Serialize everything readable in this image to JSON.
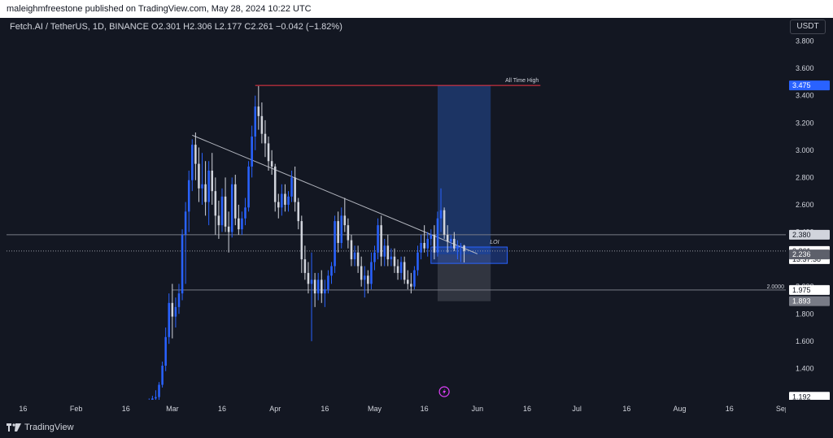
{
  "header": {
    "publish_line": "maleighmfreestone published on TradingView.com, May 28, 2024 10:22 UTC"
  },
  "symbol": {
    "info": "Fetch.AI / TetherUS, 1D, BINANCE  O2.301  H2.306  L2.177  C2.261  −0.042 (−1.82%)"
  },
  "price_axis": {
    "currency": "USDT"
  },
  "brand": {
    "name": "TradingView"
  },
  "colors": {
    "background": "#131722",
    "bull": "#2962ff",
    "bear": "#d1d4dc",
    "ath_line": "#f23645",
    "position_box": "#1e3a70",
    "stop_box": "#4a4e59",
    "label_blue": "#2962ff"
  },
  "chart_data": {
    "type": "candlestick",
    "title": "Fetch.AI / TetherUS, 1D, BINANCE",
    "ohlc_last": {
      "open": 2.301,
      "high": 2.306,
      "low": 2.177,
      "close": 2.261,
      "change": -0.042,
      "change_pct": -1.82
    },
    "y_ticks": [
      1.4,
      1.6,
      1.8,
      2.0,
      2.2,
      2.4,
      2.6,
      2.8,
      3.0,
      3.2,
      3.4,
      3.6,
      3.8
    ],
    "y_tick_labels": [
      "1.400",
      "1.600",
      "1.800",
      "2.000",
      "2.200",
      "2.400",
      "2.600",
      "2.800",
      "3.000",
      "3.200",
      "3.400",
      "3.600",
      "3.800"
    ],
    "ylim": [
      1.17,
      3.97
    ],
    "x_start": "2024-01-11",
    "x_end": "2024-09-02",
    "x_ticks": [
      {
        "date": "2024-01-16",
        "label": "16"
      },
      {
        "date": "2024-02-01",
        "label": "Feb"
      },
      {
        "date": "2024-02-16",
        "label": "16"
      },
      {
        "date": "2024-03-01",
        "label": "Mar"
      },
      {
        "date": "2024-03-16",
        "label": "16"
      },
      {
        "date": "2024-04-01",
        "label": "Apr"
      },
      {
        "date": "2024-04-16",
        "label": "16"
      },
      {
        "date": "2024-05-01",
        "label": "May"
      },
      {
        "date": "2024-05-16",
        "label": "16"
      },
      {
        "date": "2024-06-01",
        "label": "Jun"
      },
      {
        "date": "2024-06-16",
        "label": "16"
      },
      {
        "date": "2024-07-01",
        "label": "Jul"
      },
      {
        "date": "2024-07-16",
        "label": "16"
      },
      {
        "date": "2024-08-01",
        "label": "Aug"
      },
      {
        "date": "2024-08-16",
        "label": "16"
      },
      {
        "date": "2024-09-01",
        "label": "Sep"
      }
    ],
    "candles": [
      [
        "2024-02-23",
        1.15,
        1.18,
        1.12,
        1.16
      ],
      [
        "2024-02-24",
        1.16,
        1.2,
        1.14,
        1.18
      ],
      [
        "2024-02-25",
        1.18,
        1.24,
        1.16,
        1.19
      ],
      [
        "2024-02-26",
        1.19,
        1.3,
        1.17,
        1.28
      ],
      [
        "2024-02-27",
        1.28,
        1.45,
        1.26,
        1.42
      ],
      [
        "2024-02-28",
        1.42,
        1.7,
        1.38,
        1.63
      ],
      [
        "2024-02-29",
        1.63,
        1.95,
        1.58,
        1.88
      ],
      [
        "2024-03-01",
        1.88,
        2.02,
        1.62,
        1.78
      ],
      [
        "2024-03-02",
        1.78,
        1.92,
        1.7,
        1.85
      ],
      [
        "2024-03-03",
        1.85,
        2.02,
        1.8,
        1.95
      ],
      [
        "2024-03-04",
        1.95,
        2.42,
        1.9,
        2.38
      ],
      [
        "2024-03-05",
        2.38,
        2.62,
        2.02,
        2.55
      ],
      [
        "2024-03-06",
        2.55,
        2.85,
        2.4,
        2.78
      ],
      [
        "2024-03-07",
        2.78,
        3.08,
        2.7,
        3.04
      ],
      [
        "2024-03-08",
        3.04,
        3.13,
        2.78,
        2.9
      ],
      [
        "2024-03-09",
        2.9,
        3.02,
        2.62,
        2.72
      ],
      [
        "2024-03-10",
        2.72,
        2.98,
        2.6,
        2.75
      ],
      [
        "2024-03-11",
        2.75,
        2.92,
        2.52,
        2.62
      ],
      [
        "2024-03-12",
        2.62,
        2.92,
        2.45,
        2.85
      ],
      [
        "2024-03-13",
        2.85,
        2.98,
        2.6,
        2.7
      ],
      [
        "2024-03-14",
        2.7,
        2.8,
        2.38,
        2.52
      ],
      [
        "2024-03-15",
        2.52,
        2.63,
        2.35,
        2.45
      ],
      [
        "2024-03-16",
        2.45,
        2.72,
        2.4,
        2.66
      ],
      [
        "2024-03-17",
        2.66,
        2.8,
        2.4,
        2.44
      ],
      [
        "2024-03-18",
        2.44,
        2.55,
        2.25,
        2.4
      ],
      [
        "2024-03-19",
        2.4,
        2.8,
        2.36,
        2.75
      ],
      [
        "2024-03-20",
        2.75,
        2.82,
        2.45,
        2.5
      ],
      [
        "2024-03-21",
        2.5,
        2.6,
        2.38,
        2.42
      ],
      [
        "2024-03-22",
        2.42,
        2.55,
        2.38,
        2.5
      ],
      [
        "2024-03-23",
        2.5,
        2.65,
        2.45,
        2.58
      ],
      [
        "2024-03-24",
        2.58,
        2.92,
        2.55,
        2.88
      ],
      [
        "2024-03-25",
        2.88,
        3.18,
        2.8,
        3.1
      ],
      [
        "2024-03-26",
        3.1,
        3.4,
        3.0,
        3.32
      ],
      [
        "2024-03-27",
        3.32,
        3.47,
        3.15,
        3.25
      ],
      [
        "2024-03-28",
        3.25,
        3.35,
        3.05,
        3.12
      ],
      [
        "2024-03-29",
        3.12,
        3.22,
        2.95,
        3.05
      ],
      [
        "2024-03-30",
        3.05,
        3.1,
        2.85,
        2.92
      ],
      [
        "2024-03-31",
        2.92,
        3.0,
        2.82,
        2.88
      ],
      [
        "2024-04-01",
        2.88,
        2.9,
        2.55,
        2.62
      ],
      [
        "2024-04-02",
        2.62,
        2.68,
        2.5,
        2.58
      ],
      [
        "2024-04-03",
        2.58,
        2.75,
        2.52,
        2.68
      ],
      [
        "2024-04-04",
        2.68,
        2.75,
        2.55,
        2.6
      ],
      [
        "2024-04-05",
        2.6,
        2.7,
        2.55,
        2.66
      ],
      [
        "2024-04-06",
        2.66,
        2.85,
        2.62,
        2.8
      ],
      [
        "2024-04-07",
        2.8,
        2.88,
        2.55,
        2.62
      ],
      [
        "2024-04-08",
        2.62,
        2.65,
        2.42,
        2.48
      ],
      [
        "2024-04-09",
        2.48,
        2.52,
        2.1,
        2.2
      ],
      [
        "2024-04-10",
        2.2,
        2.3,
        2.05,
        2.1
      ],
      [
        "2024-04-11",
        2.1,
        2.18,
        1.95,
        2.02
      ],
      [
        "2024-04-12",
        2.02,
        2.25,
        1.6,
        2.05
      ],
      [
        "2024-04-13",
        2.05,
        2.1,
        1.85,
        1.95
      ],
      [
        "2024-04-14",
        1.95,
        2.1,
        1.9,
        2.05
      ],
      [
        "2024-04-15",
        2.05,
        2.12,
        1.88,
        1.95
      ],
      [
        "2024-04-16",
        1.95,
        2.05,
        1.85,
        1.98
      ],
      [
        "2024-04-17",
        1.98,
        2.12,
        1.95,
        2.08
      ],
      [
        "2024-04-18",
        2.08,
        2.18,
        2.02,
        2.15
      ],
      [
        "2024-04-19",
        2.15,
        2.52,
        2.1,
        2.48
      ],
      [
        "2024-04-20",
        2.48,
        2.55,
        2.25,
        2.32
      ],
      [
        "2024-04-21",
        2.32,
        2.58,
        2.28,
        2.52
      ],
      [
        "2024-04-22",
        2.52,
        2.65,
        2.4,
        2.45
      ],
      [
        "2024-04-23",
        2.45,
        2.5,
        2.28,
        2.34
      ],
      [
        "2024-04-24",
        2.34,
        2.38,
        2.15,
        2.2
      ],
      [
        "2024-04-25",
        2.2,
        2.3,
        2.15,
        2.25
      ],
      [
        "2024-04-26",
        2.25,
        2.3,
        2.1,
        2.15
      ],
      [
        "2024-04-27",
        2.15,
        2.22,
        2.0,
        2.05
      ],
      [
        "2024-04-28",
        2.05,
        2.15,
        1.92,
        2.08
      ],
      [
        "2024-04-29",
        2.08,
        2.12,
        1.95,
        2.02
      ],
      [
        "2024-04-30",
        2.02,
        2.25,
        1.98,
        2.18
      ],
      [
        "2024-05-01",
        2.18,
        2.3,
        2.12,
        2.25
      ],
      [
        "2024-05-02",
        2.25,
        2.5,
        2.2,
        2.45
      ],
      [
        "2024-05-03",
        2.45,
        2.52,
        2.15,
        2.22
      ],
      [
        "2024-05-04",
        2.22,
        2.35,
        2.15,
        2.3
      ],
      [
        "2024-05-05",
        2.3,
        2.38,
        2.15,
        2.2
      ],
      [
        "2024-05-06",
        2.2,
        2.28,
        2.15,
        2.22
      ],
      [
        "2024-05-07",
        2.22,
        2.28,
        2.1,
        2.15
      ],
      [
        "2024-05-08",
        2.15,
        2.2,
        2.05,
        2.1
      ],
      [
        "2024-05-09",
        2.1,
        2.22,
        2.05,
        2.18
      ],
      [
        "2024-05-10",
        2.18,
        2.22,
        2.02,
        2.05
      ],
      [
        "2024-05-11",
        2.05,
        2.12,
        1.98,
        2.02
      ],
      [
        "2024-05-12",
        2.02,
        2.1,
        1.95,
        2.0
      ],
      [
        "2024-05-13",
        2.0,
        2.15,
        1.98,
        2.12
      ],
      [
        "2024-05-14",
        2.12,
        2.3,
        2.08,
        2.25
      ],
      [
        "2024-05-15",
        2.25,
        2.38,
        2.2,
        2.32
      ],
      [
        "2024-05-16",
        2.32,
        2.45,
        2.25,
        2.28
      ],
      [
        "2024-05-17",
        2.28,
        2.4,
        2.22,
        2.35
      ],
      [
        "2024-05-18",
        2.35,
        2.42,
        2.3,
        2.38
      ],
      [
        "2024-05-19",
        2.38,
        2.45,
        2.2,
        2.25
      ],
      [
        "2024-05-20",
        2.25,
        2.55,
        2.22,
        2.5
      ],
      [
        "2024-05-21",
        2.5,
        2.72,
        2.4,
        2.56
      ],
      [
        "2024-05-22",
        2.56,
        2.58,
        2.35,
        2.38
      ],
      [
        "2024-05-23",
        2.38,
        2.45,
        2.25,
        2.33
      ],
      [
        "2024-05-24",
        2.33,
        2.38,
        2.28,
        2.35
      ],
      [
        "2024-05-25",
        2.35,
        2.4,
        2.26,
        2.28
      ],
      [
        "2024-05-26",
        2.28,
        2.34,
        2.2,
        2.3
      ],
      [
        "2024-05-27",
        2.3,
        2.32,
        2.18,
        2.3
      ],
      [
        "2024-05-28",
        2.301,
        2.306,
        2.177,
        2.261
      ]
    ],
    "trendline": {
      "from": [
        "2024-03-07",
        3.11
      ],
      "to": [
        "2024-06-01",
        2.24
      ]
    },
    "horizontal_levels": [
      {
        "price": 2.38,
        "label": "",
        "color": "#787b86"
      },
      {
        "price": 1.975,
        "label": "2.0000",
        "color": "#787b86",
        "x_from": "2024-03-01"
      }
    ],
    "ath_line": {
      "price": 3.475,
      "label": "All Time High",
      "x_from": "2024-03-26",
      "x_to": "2024-06-20"
    },
    "position": {
      "x_from": "2024-05-20",
      "x_to": "2024-06-05",
      "entry": 2.236,
      "target": 3.475,
      "stop": 1.893
    },
    "loi_box": {
      "x_from": "2024-05-18",
      "x_to": "2024-06-10",
      "top": 2.29,
      "bottom": 2.17,
      "label": "LOI"
    },
    "price_labels": [
      {
        "price": 3.475,
        "text": "3.475",
        "style": "blue"
      },
      {
        "price": 2.38,
        "text": "2.380",
        "style": "gray"
      },
      {
        "price": 2.261,
        "text": "2.261",
        "sub": "13:37:38",
        "style": "white"
      },
      {
        "price": 2.236,
        "text": "2.236",
        "style": "dark"
      },
      {
        "price": 1.975,
        "text": "1.975",
        "style": "white"
      },
      {
        "price": 1.893,
        "text": "1.893",
        "style": "darkgray"
      },
      {
        "price": 1.192,
        "text": "1.192",
        "style": "white"
      }
    ],
    "grid": false,
    "legend": "none"
  }
}
